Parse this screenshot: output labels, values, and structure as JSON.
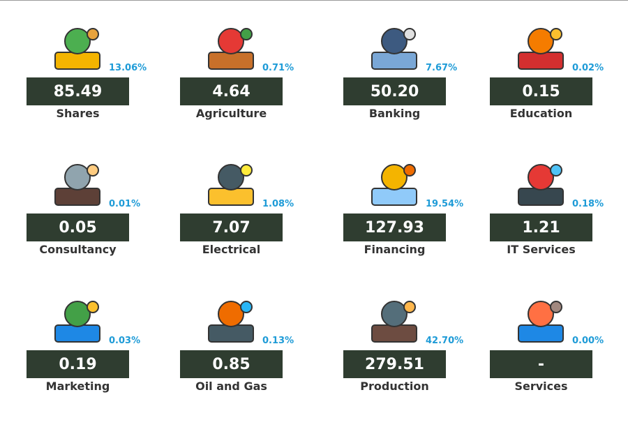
{
  "tiles": [
    {
      "label": "Shares",
      "value": "85.49",
      "percent": "13.06%"
    },
    {
      "label": "Agriculture",
      "value": "4.64",
      "percent": "0.71%"
    },
    {
      "label": "Banking",
      "value": "50.20",
      "percent": "7.67%"
    },
    {
      "label": "Education",
      "value": "0.15",
      "percent": "0.02%"
    },
    {
      "label": "Consultancy",
      "value": "0.05",
      "percent": "0.01%"
    },
    {
      "label": "Electrical",
      "value": "7.07",
      "percent": "1.08%"
    },
    {
      "label": "Financing",
      "value": "127.93",
      "percent": "19.54%"
    },
    {
      "label": "IT Services",
      "value": "1.21",
      "percent": "0.18%"
    },
    {
      "label": "Marketing",
      "value": "0.19",
      "percent": "0.03%"
    },
    {
      "label": "Oil and Gas",
      "value": "0.85",
      "percent": "0.13%"
    },
    {
      "label": "Production",
      "value": "279.51",
      "percent": "42.70%"
    },
    {
      "label": "Services",
      "value": "-",
      "percent": "0.00%"
    }
  ]
}
